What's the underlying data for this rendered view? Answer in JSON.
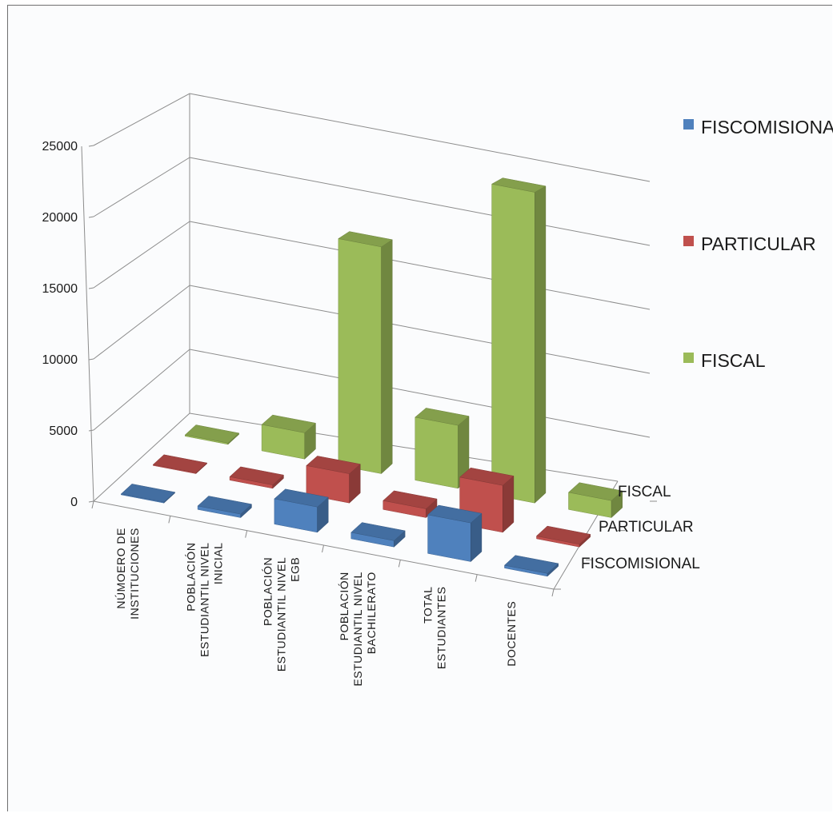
{
  "chart_data": {
    "type": "bar",
    "subtype": "3d-column",
    "title": "",
    "xlabel": "",
    "ylabel": "",
    "ylim": [
      0,
      25000
    ],
    "yticks": [
      0,
      5000,
      10000,
      15000,
      20000,
      25000
    ],
    "categories": [
      [
        "NÚMOERO DE",
        "INSTITUCIONES"
      ],
      [
        "POBLACIÓN",
        "ESTUDIANTIL NIVEL",
        "INICIAL"
      ],
      [
        "POBLACIÓN",
        "ESTUDIANTIL NIVEL",
        "EGB"
      ],
      [
        "POBLACIÓN",
        "ESTUDIANTIL NIVEL",
        "BACHILERATO"
      ],
      [
        "TOTAL",
        "ESTUDIANTES"
      ],
      [
        "DOCENTES"
      ]
    ],
    "series": [
      {
        "name": "FISCOMISIONAL",
        "color": "#4f81bd",
        "values": [
          60,
          250,
          1800,
          450,
          2750,
          200
        ]
      },
      {
        "name": "PARTICULAR",
        "color": "#c0504d",
        "values": [
          60,
          250,
          2150,
          650,
          3450,
          200
        ]
      },
      {
        "name": "FISCAL",
        "color": "#9bbb59",
        "values": [
          100,
          2000,
          17300,
          4800,
          23700,
          1300
        ]
      }
    ],
    "depth_labels": [
      "FISCAL",
      "PARTICULAR",
      "FISCOMISIONAL"
    ],
    "legend_order": [
      "FISCOMISIONAL",
      "PARTICULAR",
      "FISCAL"
    ],
    "legend": "right",
    "grid": true
  }
}
